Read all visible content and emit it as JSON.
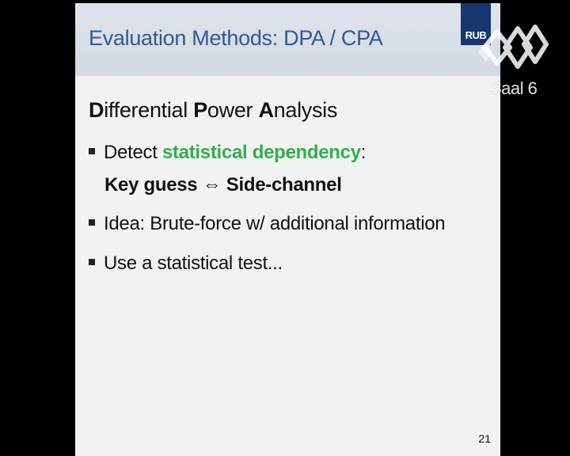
{
  "slide": {
    "title": "Evaluation Methods: DPA / CPA",
    "logo_text": "RUB",
    "heading": {
      "parts": [
        {
          "text": "D",
          "bold": true
        },
        {
          "text": "ifferential ",
          "bold": false
        },
        {
          "text": "P",
          "bold": true
        },
        {
          "text": "ower ",
          "bold": false
        },
        {
          "text": "A",
          "bold": true
        },
        {
          "text": "nalysis",
          "bold": false
        }
      ]
    },
    "bullets": [
      {
        "prefix": "Detect ",
        "highlight": "statistical dependency",
        "suffix": ":",
        "continuation": "Key guess ⇔ Side-channel"
      },
      {
        "text": "Idea: Brute-force w/ additional information"
      },
      {
        "text": "Use a statistical test..."
      }
    ],
    "page_number": "21"
  },
  "overlay": {
    "channel_label": "Saal 6",
    "logo_icon": "ccc-chaos-logo-icon"
  },
  "colors": {
    "title": "#2f5a93",
    "highlight": "#2fb04a",
    "logo_bg": "#17366e",
    "header_bg": "#d8dde6",
    "slide_bg": "#f2f2f2"
  }
}
